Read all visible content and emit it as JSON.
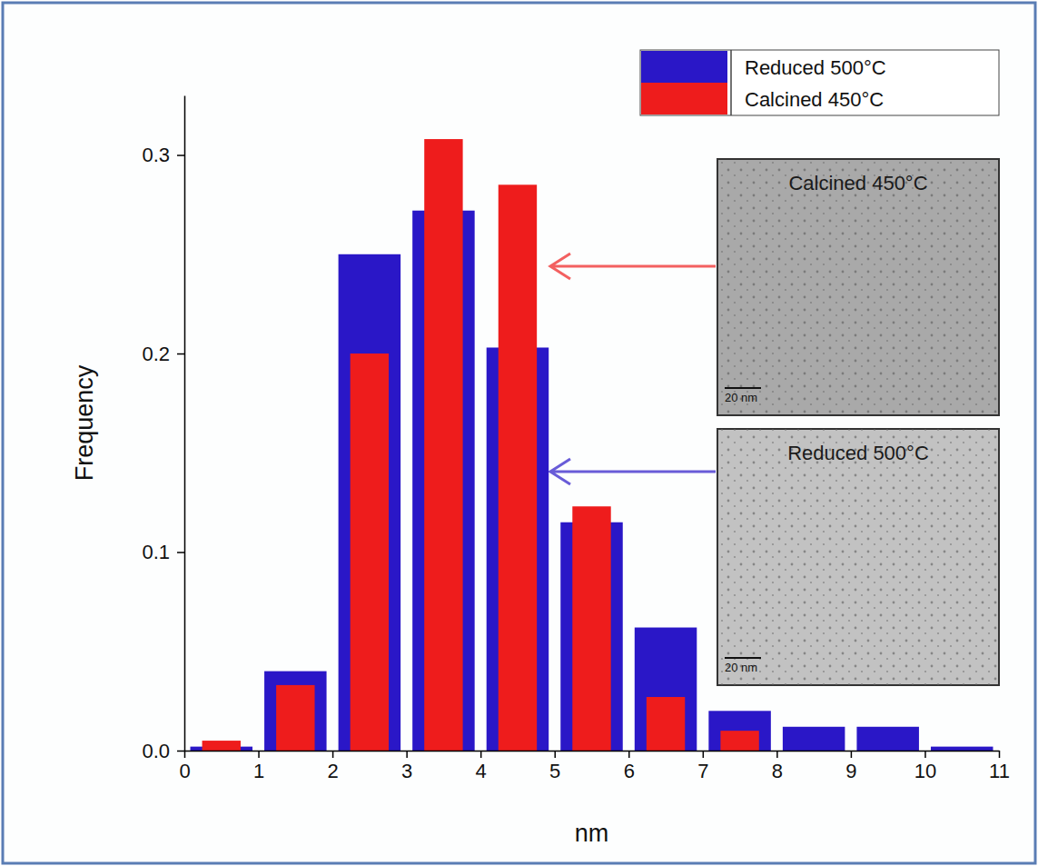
{
  "chart_data": {
    "type": "histogram",
    "bins": [
      0,
      1,
      2,
      3,
      4,
      5,
      6,
      7,
      8,
      9,
      10,
      11
    ],
    "series": [
      {
        "name": "Reduced 500°C",
        "color": "#2a17c7",
        "values": [
          0.002,
          0.04,
          0.25,
          0.272,
          0.203,
          0.115,
          0.062,
          0.02,
          0.012,
          0.012,
          0.002
        ]
      },
      {
        "name": "Calcined 450°C",
        "color": "#ee1c1c",
        "values": [
          0.005,
          0.033,
          0.2,
          0.308,
          0.285,
          0.123,
          0.027,
          0.01,
          0,
          0,
          0
        ]
      }
    ],
    "x_label": "nm",
    "y_label": "Frequency",
    "xlim": [
      0,
      11
    ],
    "xticks": [
      0,
      1,
      2,
      3,
      4,
      5,
      6,
      7,
      8,
      9,
      10,
      11
    ],
    "ylim": [
      0,
      0.33
    ],
    "yticks": [
      {
        "value": 0,
        "label": "0.0"
      },
      0.1,
      0.2,
      0.3
    ],
    "legend": "top-right",
    "insets": [
      {
        "label": "Calcined 450°C",
        "scale_bar": "20 nm"
      },
      {
        "label": "Reduced 500°C",
        "scale_bar": "20 nm"
      }
    ]
  }
}
